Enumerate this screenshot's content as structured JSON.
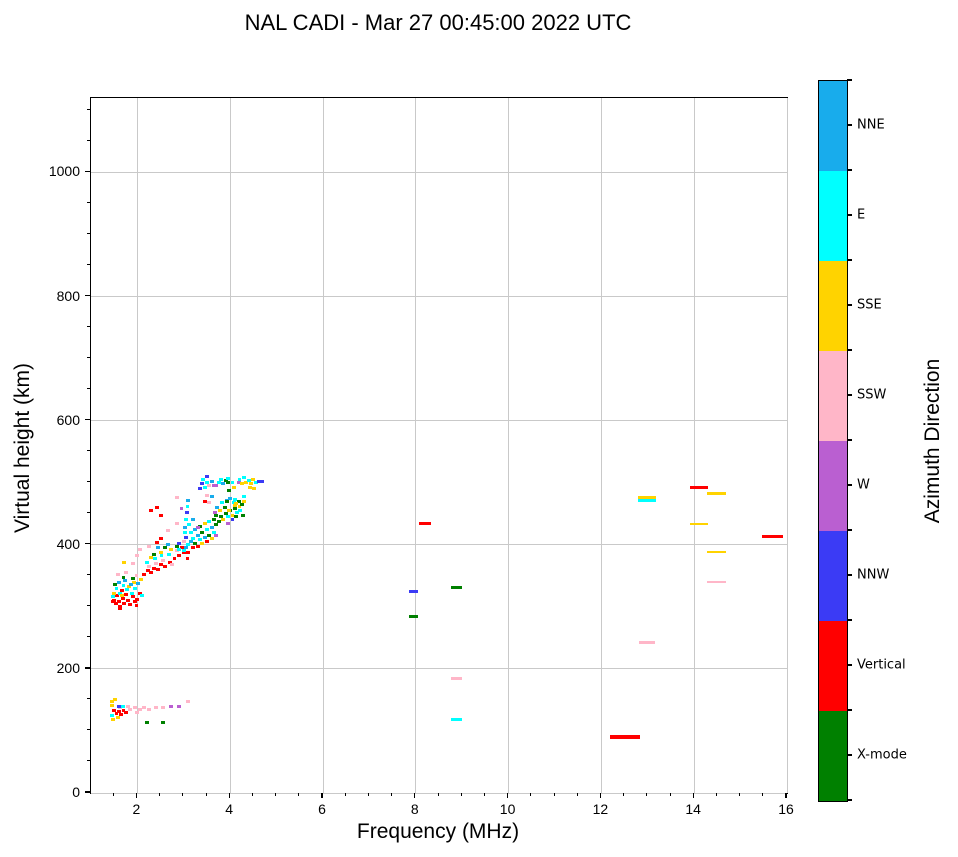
{
  "title": "NAL CADI - Mar 27 00:45:00 2022 UTC",
  "chart_data": {
    "type": "scatter",
    "title": "NAL CADI - Mar 27 00:45:00 2022 UTC",
    "xlabel": "Frequency (MHz)",
    "ylabel": "Virtual height (km)",
    "xlim": [
      1,
      16
    ],
    "ylim": [
      0,
      1120
    ],
    "x_major_ticks": [
      2,
      4,
      6,
      8,
      10,
      12,
      14,
      16
    ],
    "x_minor_step": 0.5,
    "y_major_ticks": [
      0,
      200,
      400,
      600,
      800,
      1000
    ],
    "y_minor_step": 50,
    "grid": true,
    "grid_color": "#c9c9c9",
    "legend_position": "right-colorbar",
    "colorbar": {
      "label": "Azimuth Direction",
      "categories": [
        {
          "label": "NNE",
          "color": "#18ACEC"
        },
        {
          "label": "E",
          "color": "#00FFFF"
        },
        {
          "label": "SSE",
          "color": "#FFD300"
        },
        {
          "label": "SSW",
          "color": "#FFB6C8"
        },
        {
          "label": "W",
          "color": "#BA5FD1"
        },
        {
          "label": "NNW",
          "color": "#3B3BF5"
        },
        {
          "label": "Vertical",
          "color": "#FF0000"
        },
        {
          "label": "X-mode",
          "color": "#008000"
        }
      ]
    },
    "point_colors": {
      "NNE": "#18ACEC",
      "E": "#00FFFF",
      "SSE": "#FFD300",
      "SSW": "#FFB6C8",
      "W": "#BA5FD1",
      "NNW": "#3B3BF5",
      "V": "#FF0000",
      "X": "#008000"
    },
    "point_default_width_mhz": 0.085,
    "point_default_thickness_px": 3,
    "points": [
      [
        1.5,
        311,
        "V"
      ],
      [
        1.53,
        305,
        "V"
      ],
      [
        1.57,
        318,
        "V"
      ],
      [
        1.6,
        308,
        "V"
      ],
      [
        1.63,
        300,
        "V"
      ],
      [
        1.66,
        327,
        "V"
      ],
      [
        1.69,
        313,
        "V"
      ],
      [
        1.72,
        305,
        "V"
      ],
      [
        1.75,
        320,
        "V"
      ],
      [
        1.8,
        310,
        "V"
      ],
      [
        1.85,
        303,
        "V"
      ],
      [
        1.9,
        316,
        "V"
      ],
      [
        1.95,
        308,
        "V"
      ],
      [
        2.0,
        312,
        "V"
      ],
      [
        2.05,
        322,
        "V"
      ],
      [
        1.48,
        308,
        "V"
      ],
      [
        1.62,
        298,
        "V"
      ],
      [
        1.98,
        302,
        "V"
      ],
      [
        1.55,
        330,
        "E"
      ],
      [
        1.62,
        322,
        "E"
      ],
      [
        1.7,
        335,
        "E"
      ],
      [
        1.78,
        328,
        "E"
      ],
      [
        1.88,
        322,
        "E"
      ],
      [
        1.95,
        330,
        "E"
      ],
      [
        2.1,
        318,
        "E"
      ],
      [
        1.47,
        316,
        "E"
      ],
      [
        1.5,
        322,
        "SSE"
      ],
      [
        1.66,
        318,
        "SSE"
      ],
      [
        1.82,
        332,
        "SSE"
      ],
      [
        1.93,
        340,
        "SSE"
      ],
      [
        2.08,
        344,
        "SSE"
      ],
      [
        1.6,
        340,
        "NNE"
      ],
      [
        1.74,
        342,
        "NNE"
      ],
      [
        1.86,
        336,
        "NNE"
      ],
      [
        2.02,
        338,
        "NNE"
      ],
      [
        1.52,
        336,
        "X"
      ],
      [
        1.7,
        348,
        "X"
      ],
      [
        1.9,
        346,
        "X"
      ],
      [
        1.58,
        352,
        "SSW"
      ],
      [
        1.76,
        355,
        "SSW"
      ],
      [
        1.98,
        350,
        "SSW"
      ],
      [
        2.15,
        352,
        "V"
      ],
      [
        2.22,
        358,
        "V"
      ],
      [
        2.3,
        355,
        "V"
      ],
      [
        2.36,
        362,
        "V"
      ],
      [
        2.45,
        360,
        "V"
      ],
      [
        2.5,
        368,
        "V"
      ],
      [
        2.6,
        365,
        "V"
      ],
      [
        2.7,
        372,
        "V"
      ],
      [
        2.8,
        378,
        "V"
      ],
      [
        2.9,
        382,
        "V"
      ],
      [
        2.96,
        396,
        "V"
      ],
      [
        3.0,
        388,
        "V"
      ],
      [
        2.43,
        403,
        "V"
      ],
      [
        2.25,
        365,
        "SSW"
      ],
      [
        2.4,
        370,
        "SSW"
      ],
      [
        2.55,
        375,
        "SSW"
      ],
      [
        2.75,
        368,
        "SSW"
      ],
      [
        2.85,
        390,
        "SSW"
      ],
      [
        1.9,
        370,
        "SSW"
      ],
      [
        2.0,
        382,
        "SSW"
      ],
      [
        2.05,
        392,
        "SSW"
      ],
      [
        2.26,
        398,
        "SSW"
      ],
      [
        2.2,
        372,
        "E"
      ],
      [
        2.38,
        378,
        "E"
      ],
      [
        2.52,
        382,
        "E"
      ],
      [
        2.68,
        385,
        "E"
      ],
      [
        2.9,
        392,
        "E"
      ],
      [
        2.3,
        380,
        "SSE"
      ],
      [
        2.5,
        388,
        "SSE"
      ],
      [
        2.72,
        392,
        "SSE"
      ],
      [
        1.72,
        372,
        "SSE"
      ],
      [
        2.36,
        385,
        "X"
      ],
      [
        2.6,
        395,
        "X"
      ],
      [
        2.85,
        398,
        "X"
      ],
      [
        2.45,
        395,
        "NNE"
      ],
      [
        2.65,
        400,
        "NNE"
      ],
      [
        2.9,
        402,
        "NNW"
      ],
      [
        2.3,
        455,
        "V"
      ],
      [
        2.42,
        460,
        "V"
      ],
      [
        2.5,
        448,
        "V"
      ],
      [
        2.95,
        458,
        "W"
      ],
      [
        2.85,
        434,
        "SSW"
      ],
      [
        2.65,
        423,
        "SSW"
      ],
      [
        2.5,
        410,
        "V"
      ],
      [
        2.86,
        476,
        "SSW"
      ],
      [
        3.0,
        390,
        "E"
      ],
      [
        3.05,
        395,
        "NNE"
      ],
      [
        3.1,
        388,
        "V"
      ],
      [
        3.1,
        400,
        "E"
      ],
      [
        3.15,
        405,
        "NNE"
      ],
      [
        3.2,
        395,
        "V"
      ],
      [
        3.2,
        410,
        "E"
      ],
      [
        3.25,
        402,
        "X"
      ],
      [
        3.3,
        398,
        "V"
      ],
      [
        3.3,
        415,
        "NNE"
      ],
      [
        3.35,
        408,
        "E"
      ],
      [
        3.4,
        402,
        "SSE"
      ],
      [
        3.4,
        420,
        "X"
      ],
      [
        3.45,
        412,
        "NNE"
      ],
      [
        3.5,
        405,
        "V"
      ],
      [
        3.5,
        425,
        "E"
      ],
      [
        3.55,
        415,
        "X"
      ],
      [
        3.6,
        410,
        "SSE"
      ],
      [
        3.6,
        428,
        "NNE"
      ],
      [
        3.65,
        420,
        "E"
      ],
      [
        3.7,
        415,
        "W"
      ],
      [
        3.7,
        432,
        "X"
      ],
      [
        3.05,
        412,
        "NNW"
      ],
      [
        3.15,
        420,
        "E"
      ],
      [
        3.25,
        425,
        "NNE"
      ],
      [
        3.35,
        430,
        "X"
      ],
      [
        3.45,
        435,
        "SSE"
      ],
      [
        3.55,
        438,
        "E"
      ],
      [
        3.65,
        440,
        "X"
      ],
      [
        3.0,
        405,
        "SSW"
      ],
      [
        3.08,
        378,
        "V"
      ],
      [
        3.3,
        428,
        "W"
      ],
      [
        3.12,
        432,
        "E"
      ],
      [
        3.2,
        440,
        "NNE"
      ],
      [
        3.02,
        420,
        "E"
      ],
      [
        3.02,
        428,
        "NNE"
      ],
      [
        3.04,
        440,
        "E"
      ],
      [
        3.06,
        452,
        "NNW"
      ],
      [
        3.08,
        462,
        "E"
      ],
      [
        3.1,
        472,
        "NNE"
      ],
      [
        3.75,
        438,
        "X"
      ],
      [
        3.8,
        445,
        "X"
      ],
      [
        3.85,
        440,
        "SSE"
      ],
      [
        3.9,
        450,
        "X"
      ],
      [
        3.95,
        445,
        "E"
      ],
      [
        4.0,
        455,
        "X"
      ],
      [
        4.05,
        448,
        "SSE"
      ],
      [
        4.1,
        458,
        "X"
      ],
      [
        4.15,
        452,
        "E"
      ],
      [
        4.2,
        462,
        "SSE"
      ],
      [
        3.7,
        448,
        "X"
      ],
      [
        3.78,
        455,
        "SSE"
      ],
      [
        3.88,
        460,
        "X"
      ],
      [
        3.97,
        456,
        "SSE"
      ],
      [
        4.08,
        468,
        "E"
      ],
      [
        4.18,
        470,
        "X"
      ],
      [
        3.72,
        460,
        "NNE"
      ],
      [
        3.82,
        468,
        "E"
      ],
      [
        3.92,
        472,
        "NNE"
      ],
      [
        4.25,
        465,
        "X"
      ],
      [
        4.3,
        470,
        "SSE"
      ],
      [
        3.95,
        435,
        "W"
      ],
      [
        4.05,
        440,
        "NNW"
      ],
      [
        4.22,
        455,
        "E"
      ],
      [
        3.68,
        452,
        "W"
      ],
      [
        4.12,
        445,
        "X"
      ],
      [
        4.0,
        475,
        "NNE"
      ],
      [
        4.3,
        478,
        "E"
      ],
      [
        4.28,
        448,
        "X"
      ],
      [
        4.1,
        463,
        "SSE"
      ],
      [
        3.35,
        490,
        "NNW"
      ],
      [
        3.4,
        498,
        "NNW"
      ],
      [
        3.45,
        492,
        "E"
      ],
      [
        3.5,
        500,
        "E"
      ],
      [
        3.5,
        510,
        "NNW"
      ],
      [
        3.55,
        495,
        "SSW"
      ],
      [
        3.6,
        502,
        "NNE"
      ],
      [
        3.65,
        496,
        "W"
      ],
      [
        3.7,
        495,
        "W"
      ],
      [
        3.75,
        500,
        "E"
      ],
      [
        3.8,
        505,
        "E"
      ],
      [
        3.85,
        498,
        "NNE"
      ],
      [
        3.9,
        503,
        "X"
      ],
      [
        3.93,
        470,
        "X"
      ],
      [
        3.95,
        507,
        "E"
      ],
      [
        3.95,
        501,
        "X"
      ],
      [
        3.97,
        487,
        "X"
      ],
      [
        4.05,
        500,
        "E"
      ],
      [
        4.08,
        493,
        "SSE"
      ],
      [
        4.1,
        473,
        "E"
      ],
      [
        4.12,
        466,
        "SSE"
      ],
      [
        4.18,
        500,
        "W"
      ],
      [
        4.2,
        505,
        "E"
      ],
      [
        4.25,
        498,
        "SSE"
      ],
      [
        4.3,
        508,
        "E"
      ],
      [
        4.35,
        500,
        "SSE"
      ],
      [
        4.4,
        504,
        "E"
      ],
      [
        4.42,
        493,
        "SSE"
      ],
      [
        4.45,
        498,
        "SSE"
      ],
      [
        4.5,
        505,
        "SSE"
      ],
      [
        4.52,
        490,
        "SSE"
      ],
      [
        4.55,
        500,
        "E"
      ],
      [
        4.65,
        502,
        "NNW",
        0.15
      ],
      [
        3.5,
        480,
        "SSW"
      ],
      [
        3.6,
        478,
        "NNE"
      ],
      [
        3.45,
        470,
        "V"
      ],
      [
        3.55,
        468,
        "SSW"
      ],
      [
        3.42,
        505,
        "E"
      ],
      [
        1.45,
        148,
        "SSE"
      ],
      [
        1.46,
        141,
        "SSE"
      ],
      [
        1.52,
        150,
        "SSE"
      ],
      [
        1.5,
        133,
        "V"
      ],
      [
        1.55,
        128,
        "V"
      ],
      [
        1.6,
        131,
        "V"
      ],
      [
        1.65,
        126,
        "V"
      ],
      [
        1.7,
        133,
        "V"
      ],
      [
        1.75,
        129,
        "V"
      ],
      [
        1.62,
        137,
        "SSW"
      ],
      [
        1.68,
        140,
        "E"
      ],
      [
        1.45,
        125,
        "E"
      ],
      [
        1.48,
        119,
        "SSE"
      ],
      [
        1.58,
        122,
        "SSE"
      ],
      [
        1.6,
        140,
        "NNW"
      ],
      [
        1.8,
        140,
        "SSW"
      ],
      [
        1.85,
        135,
        "SSW"
      ],
      [
        1.95,
        138,
        "SSW"
      ],
      [
        2.0,
        130,
        "SSW"
      ],
      [
        2.05,
        134,
        "SSW"
      ],
      [
        2.15,
        137,
        "SSW"
      ],
      [
        2.25,
        135,
        "SSW"
      ],
      [
        2.4,
        137,
        "SSW"
      ],
      [
        2.55,
        137,
        "SSW"
      ],
      [
        2.73,
        139,
        "W"
      ],
      [
        2.9,
        139,
        "W"
      ],
      [
        3.1,
        148,
        "SSW"
      ],
      [
        2.2,
        114,
        "X"
      ],
      [
        2.55,
        114,
        "X"
      ],
      [
        8.2,
        434,
        "V",
        0.25
      ],
      [
        7.95,
        324,
        "NNW",
        0.2
      ],
      [
        8.88,
        331,
        "X",
        0.25
      ],
      [
        7.95,
        285,
        "X",
        0.2
      ],
      [
        8.88,
        184,
        "SSW",
        0.25
      ],
      [
        8.88,
        119,
        "E",
        0.25
      ],
      [
        12.5,
        90,
        "V",
        0.65,
        4
      ],
      [
        12.98,
        477,
        "SSE",
        0.38
      ],
      [
        12.98,
        471,
        "E",
        0.38
      ],
      [
        12.99,
        242,
        "SSW",
        0.35
      ],
      [
        14.1,
        492,
        "V",
        0.4
      ],
      [
        14.1,
        434,
        "SSE",
        0.4,
        2
      ],
      [
        14.48,
        482,
        "SSE",
        0.4
      ],
      [
        14.48,
        389,
        "SSE",
        0.4,
        2
      ],
      [
        14.48,
        340,
        "SSW",
        0.4,
        2
      ],
      [
        15.68,
        413,
        "V",
        0.45
      ]
    ]
  }
}
